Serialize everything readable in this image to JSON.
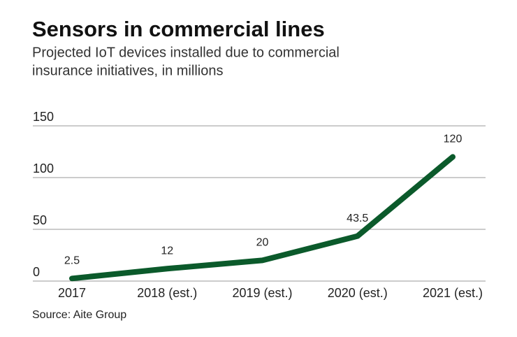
{
  "chart_data": {
    "type": "line",
    "title": "Sensors in commercial lines",
    "subtitle": [
      "Projected IoT devices installed due to commercial",
      "insurance initiatives, in millions"
    ],
    "categories": [
      "2017",
      "2018 (est.)",
      "2019 (est.)",
      "2020 (est.)",
      "2021 (est.)"
    ],
    "values": [
      2.5,
      12,
      20,
      43.5,
      120
    ],
    "color": "#0b5a2b",
    "ylim": [
      0,
      150
    ],
    "yticks": [
      0,
      50,
      100,
      150
    ],
    "grid": true,
    "source": "Source: Aite Group"
  }
}
